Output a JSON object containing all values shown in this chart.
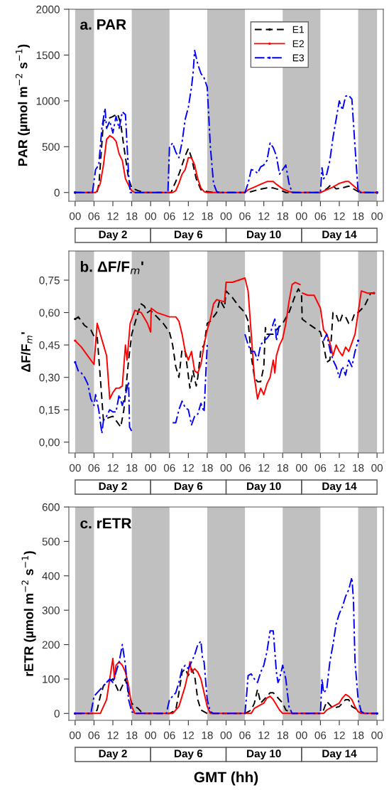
{
  "chart_data": [
    {
      "type": "line",
      "title": "a. PAR",
      "ylabel": "PAR (µmol m$^{−2}$ s$^{−1}$)",
      "legend": "top",
      "xlim": [
        -2,
        98
      ],
      "ylim": [
        -95,
        2000
      ],
      "yticks": [
        0,
        500,
        1000,
        1500,
        2000
      ],
      "xticks": [
        {
          "value": 0,
          "label": "00"
        },
        {
          "value": 6,
          "label": "06"
        },
        {
          "value": 12,
          "label": "12"
        },
        {
          "value": 18,
          "label": "18"
        },
        {
          "value": 24,
          "label": "00"
        },
        {
          "value": 30,
          "label": "06"
        },
        {
          "value": 36,
          "label": "12"
        },
        {
          "value": 42,
          "label": "18"
        },
        {
          "value": 48,
          "label": "00"
        },
        {
          "value": 54,
          "label": "06"
        },
        {
          "value": 60,
          "label": "12"
        },
        {
          "value": 66,
          "label": "18"
        },
        {
          "value": 72,
          "label": "00"
        },
        {
          "value": 78,
          "label": "06"
        },
        {
          "value": 84,
          "label": "12"
        },
        {
          "value": 90,
          "label": "18"
        },
        {
          "value": 96,
          "label": "00"
        }
      ],
      "bands": [
        {
          "axis": "x",
          "from": 0,
          "to": 6,
          "color": "#c0c0c0"
        },
        {
          "axis": "x",
          "from": 18,
          "to": 30,
          "color": "#c0c0c0"
        },
        {
          "axis": "x",
          "from": 42,
          "to": 54,
          "color": "#c0c0c0"
        },
        {
          "axis": "x",
          "from": 66,
          "to": 78,
          "color": "#c0c0c0"
        },
        {
          "axis": "x",
          "from": 90,
          "to": 96,
          "color": "#c0c0c0"
        }
      ],
      "annotations": [
        "Day 2",
        "Day 6",
        "Day 10",
        "Day 14"
      ],
      "series": [
        {
          "name": "E1",
          "color": "#000000",
          "line_style": "dashed",
          "x": [
            0,
            6,
            7,
            7.6,
            9,
            10,
            12,
            13.5,
            14.5,
            15.5,
            17,
            18,
            20,
            22,
            30.5,
            31,
            33,
            35,
            36,
            37,
            38.5,
            40,
            42,
            44,
            54,
            56,
            58,
            61,
            63,
            65,
            67,
            78,
            80,
            81.5,
            83,
            85,
            87,
            88,
            90,
            92,
            96
          ],
          "values": [
            0,
            0,
            10,
            100,
            780,
            800,
            830,
            860,
            750,
            500,
            150,
            50,
            20,
            0,
            0,
            40,
            200,
            400,
            480,
            380,
            150,
            30,
            10,
            0,
            0,
            10,
            30,
            50,
            50,
            30,
            0,
            0,
            40,
            90,
            40,
            50,
            70,
            50,
            10,
            0,
            0
          ]
        },
        {
          "name": "E2",
          "color": "#ff0000",
          "line_style": "solid",
          "x": [
            0,
            6.5,
            7,
            8,
            9,
            10,
            11,
            12,
            13,
            14,
            15,
            16,
            17,
            18,
            19,
            31,
            32,
            33,
            34,
            35,
            36,
            37,
            38,
            39,
            40,
            41,
            42,
            54,
            55,
            57,
            59,
            61,
            63,
            64,
            66,
            68,
            70,
            78,
            80,
            82,
            84,
            86,
            87,
            88,
            90,
            91,
            96
          ],
          "values": [
            0,
            0,
            20,
            100,
            300,
            580,
            620,
            600,
            560,
            420,
            350,
            150,
            80,
            20,
            0,
            0,
            20,
            100,
            200,
            250,
            380,
            380,
            300,
            150,
            50,
            10,
            0,
            0,
            30,
            60,
            90,
            120,
            120,
            90,
            40,
            10,
            0,
            0,
            30,
            60,
            100,
            120,
            120,
            90,
            30,
            0,
            0
          ]
        },
        {
          "name": "E3",
          "color": "#0000ff",
          "line_style": "dashdot",
          "x": [
            0,
            5.5,
            6.5,
            7.5,
            8.5,
            9.5,
            10,
            11,
            12,
            13,
            14,
            15,
            16,
            17,
            17.5,
            29.5,
            30,
            31,
            32,
            33,
            34,
            35,
            36,
            37,
            37.5,
            38,
            39,
            40,
            41,
            42,
            43,
            44,
            45,
            46,
            54,
            55,
            56,
            57,
            58,
            59,
            60,
            61,
            62,
            63,
            64,
            65,
            66,
            67,
            68,
            69,
            78,
            78.5,
            79,
            80,
            81,
            82,
            83,
            84,
            85,
            86,
            87,
            88,
            89,
            90,
            96
          ],
          "values": [
            0,
            0,
            250,
            300,
            700,
            920,
            700,
            780,
            650,
            830,
            700,
            880,
            850,
            200,
            0,
            0,
            500,
            540,
            440,
            380,
            550,
            800,
            930,
            1150,
            1300,
            1550,
            1400,
            1300,
            1250,
            1150,
            500,
            100,
            10,
            0,
            0,
            100,
            250,
            240,
            210,
            280,
            300,
            350,
            540,
            490,
            400,
            200,
            250,
            300,
            100,
            0,
            0,
            270,
            150,
            200,
            350,
            600,
            800,
            1000,
            900,
            1050,
            1060,
            1020,
            500,
            0,
            0
          ]
        }
      ]
    },
    {
      "type": "line",
      "title": "b. ΔF/F$_{m}$'",
      "ylabel": "ΔF/F$_{m}$'",
      "xlim": [
        -2,
        98
      ],
      "ylim": [
        -0.05,
        0.885
      ],
      "yticks": [
        {
          "value": 0,
          "label": "0,00"
        },
        {
          "value": 0.15,
          "label": "0,15"
        },
        {
          "value": 0.3,
          "label": "0,30"
        },
        {
          "value": 0.45,
          "label": "0,45"
        },
        {
          "value": 0.6,
          "label": "0,60"
        },
        {
          "value": 0.75,
          "label": "0,75"
        }
      ],
      "xticks": [
        {
          "value": 0,
          "label": "00"
        },
        {
          "value": 6,
          "label": "06"
        },
        {
          "value": 12,
          "label": "12"
        },
        {
          "value": 18,
          "label": "18"
        },
        {
          "value": 24,
          "label": "00"
        },
        {
          "value": 30,
          "label": "06"
        },
        {
          "value": 36,
          "label": "12"
        },
        {
          "value": 42,
          "label": "18"
        },
        {
          "value": 48,
          "label": "00"
        },
        {
          "value": 54,
          "label": "06"
        },
        {
          "value": 60,
          "label": "12"
        },
        {
          "value": 66,
          "label": "18"
        },
        {
          "value": 72,
          "label": "00"
        },
        {
          "value": 78,
          "label": "06"
        },
        {
          "value": 84,
          "label": "12"
        },
        {
          "value": 90,
          "label": "18"
        },
        {
          "value": 96,
          "label": "00"
        }
      ],
      "bands": [
        {
          "axis": "x",
          "from": 0,
          "to": 6,
          "color": "#c0c0c0"
        },
        {
          "axis": "x",
          "from": 18,
          "to": 30,
          "color": "#c0c0c0"
        },
        {
          "axis": "x",
          "from": 42,
          "to": 54,
          "color": "#c0c0c0"
        },
        {
          "axis": "x",
          "from": 66,
          "to": 78,
          "color": "#c0c0c0"
        },
        {
          "axis": "x",
          "from": 90,
          "to": 96,
          "color": "#c0c0c0"
        }
      ],
      "annotations": [
        "Day 2",
        "Day 6",
        "Day 10",
        "Day 14"
      ],
      "series": [
        {
          "color": "#000000",
          "line_style": "dashed",
          "x": [
            0,
            1,
            3,
            5,
            6,
            7,
            8,
            9,
            10,
            12,
            13,
            14.5,
            15.5,
            17,
            18,
            20,
            21,
            22,
            23,
            24,
            26,
            28,
            30,
            31,
            32,
            33,
            34,
            35,
            36.5,
            37.5,
            38.5,
            39,
            40,
            41,
            42,
            43,
            45,
            46,
            47.5,
            48,
            50,
            52,
            54,
            55,
            56,
            57,
            58,
            59,
            60,
            60.5,
            61,
            63,
            64,
            66,
            68,
            70,
            71,
            72,
            72.2,
            74,
            76,
            78,
            79,
            80,
            81,
            82,
            83,
            84,
            85,
            86,
            87,
            88,
            89,
            90,
            92,
            94,
            95
          ],
          "values": [
            0.57,
            0.58,
            0.54,
            0.52,
            0.49,
            0.49,
            0.3,
            0.1,
            0.11,
            0.12,
            0.1,
            0.07,
            0.15,
            0.38,
            0.5,
            0.6,
            0.64,
            0.63,
            0.6,
            0.61,
            0.58,
            0.55,
            0.51,
            0.45,
            0.35,
            0.3,
            0.43,
            0.42,
            0.25,
            0.33,
            0.26,
            0.3,
            0.43,
            0.45,
            0.55,
            0.56,
            0.6,
            0.66,
            0.62,
            0.7,
            0.67,
            0.63,
            0.6,
            0.56,
            0.4,
            0.3,
            0.28,
            0.28,
            0.35,
            0.53,
            0.5,
            0.5,
            0.52,
            0.55,
            0.6,
            0.68,
            0.71,
            0.68,
            0.57,
            0.55,
            0.53,
            0.51,
            0.45,
            0.37,
            0.38,
            0.6,
            0.59,
            0.55,
            0.59,
            0.58,
            0.55,
            0.56,
            0.6,
            0.6,
            0.63,
            0.69,
            0.69
          ]
        },
        {
          "color": "#ff0000",
          "line_style": "solid",
          "x": [
            0,
            2,
            4,
            6,
            7,
            8,
            9,
            10,
            11,
            12,
            13,
            14,
            15,
            16,
            16.5,
            17.5,
            19,
            21,
            23,
            24,
            24.2,
            26,
            28,
            30,
            32,
            33,
            34,
            35,
            36,
            37,
            38,
            39,
            40,
            41,
            42,
            43,
            44,
            45,
            47.5,
            48,
            50,
            52,
            54,
            55,
            56,
            57,
            58,
            59,
            60,
            61,
            62,
            63,
            63.5,
            64,
            65,
            66,
            67,
            68,
            69,
            70,
            71.5,
            72,
            72.3,
            74,
            76,
            78,
            79,
            80,
            81,
            82,
            83,
            84,
            85,
            86,
            87,
            88,
            89,
            90,
            91,
            93,
            95
          ],
          "values": [
            0.47,
            0.44,
            0.4,
            0.36,
            0.55,
            0.5,
            0.45,
            0.4,
            0.2,
            0.23,
            0.25,
            0.25,
            0.26,
            0.45,
            0.38,
            0.55,
            0.61,
            0.6,
            0.55,
            0.51,
            0.62,
            0.6,
            0.59,
            0.58,
            0.58,
            0.56,
            0.5,
            0.42,
            0.38,
            0.42,
            0.33,
            0.32,
            0.36,
            0.45,
            0.52,
            0.57,
            0.64,
            0.66,
            0.65,
            0.74,
            0.74,
            0.75,
            0.76,
            0.7,
            0.5,
            0.3,
            0.2,
            0.25,
            0.22,
            0.27,
            0.3,
            0.38,
            0.32,
            0.4,
            0.45,
            0.48,
            0.55,
            0.65,
            0.73,
            0.74,
            0.73,
            null,
            0.69,
            0.68,
            0.68,
            0.62,
            0.52,
            0.5,
            0.46,
            0.4,
            0.45,
            0.42,
            0.4,
            0.44,
            0.42,
            0.46,
            0.5,
            0.6,
            0.7,
            0.69,
            0.69
          ]
        },
        {
          "color": "#0000ff",
          "line_style": "dashdot",
          "x": [
            0,
            1,
            2,
            3,
            4,
            5,
            6,
            6.5,
            7.5,
            8.5,
            9,
            10,
            11,
            12,
            13,
            14,
            15,
            16,
            17,
            17.3,
            18,
            24,
            31,
            32,
            33,
            34,
            35,
            36,
            37,
            38,
            39,
            40,
            41,
            41.5,
            42,
            48,
            54,
            55,
            56,
            57,
            58,
            59,
            60,
            61,
            62,
            63,
            63.5,
            64,
            65,
            72,
            79,
            80,
            81,
            82,
            83,
            84,
            85,
            86,
            87,
            88,
            89,
            90
          ],
          "values": [
            0.37,
            0.33,
            0.32,
            0.3,
            0.27,
            0.2,
            0.17,
            0.22,
            0.15,
            0.04,
            0.1,
            0.12,
            0.15,
            0.14,
            0.14,
            0.22,
            0.17,
            0.22,
            0.28,
            0.07,
            0.05,
            null,
            0.09,
            0.09,
            0.15,
            0.19,
            0.16,
            0.15,
            0.08,
            0.12,
            0.13,
            0.18,
            0.14,
            0.3,
            0.45,
            null,
            0.5,
            0.45,
            0.42,
            0.42,
            0.38,
            0.45,
            0.47,
            0.48,
            0.5,
            0.55,
            0.57,
            0.47,
            0.55,
            null,
            0.47,
            0.5,
            0.43,
            0.38,
            0.35,
            0.3,
            0.35,
            0.31,
            0.38,
            0.35,
            0.42,
            0.47
          ]
        }
      ]
    },
    {
      "type": "line",
      "title": "c. rETR",
      "ylabel": "rETR (µmol m$^{−2}$ s$^{−1}$)",
      "xlabel": "GMT (hh)",
      "xlim": [
        -2,
        98
      ],
      "ylim": [
        -20,
        600
      ],
      "yticks": [
        0,
        100,
        200,
        300,
        400,
        500,
        600
      ],
      "xticks": [
        {
          "value": 0,
          "label": "00"
        },
        {
          "value": 6,
          "label": "06"
        },
        {
          "value": 12,
          "label": "12"
        },
        {
          "value": 18,
          "label": "18"
        },
        {
          "value": 24,
          "label": "00"
        },
        {
          "value": 30,
          "label": "06"
        },
        {
          "value": 36,
          "label": "12"
        },
        {
          "value": 42,
          "label": "18"
        },
        {
          "value": 48,
          "label": "00"
        },
        {
          "value": 54,
          "label": "06"
        },
        {
          "value": 60,
          "label": "12"
        },
        {
          "value": 66,
          "label": "18"
        },
        {
          "value": 72,
          "label": "00"
        },
        {
          "value": 78,
          "label": "06"
        },
        {
          "value": 84,
          "label": "12"
        },
        {
          "value": 90,
          "label": "18"
        },
        {
          "value": 96,
          "label": "00"
        }
      ],
      "bands": [
        {
          "axis": "x",
          "from": 0,
          "to": 6,
          "color": "#c0c0c0"
        },
        {
          "axis": "x",
          "from": 18,
          "to": 30,
          "color": "#c0c0c0"
        },
        {
          "axis": "x",
          "from": 42,
          "to": 54,
          "color": "#c0c0c0"
        },
        {
          "axis": "x",
          "from": 66,
          "to": 78,
          "color": "#c0c0c0"
        },
        {
          "axis": "x",
          "from": 90,
          "to": 96,
          "color": "#c0c0c0"
        }
      ],
      "annotations": [
        "Day 2",
        "Day 6",
        "Day 10",
        "Day 14"
      ],
      "series": [
        {
          "color": "#000000",
          "line_style": "dashed",
          "x": [
            0,
            6,
            7,
            8,
            9,
            10,
            11,
            12,
            13,
            14,
            15,
            16,
            17,
            18,
            19,
            20,
            21,
            22,
            30,
            32,
            33,
            34,
            35,
            36,
            37,
            38,
            39,
            40,
            42,
            54,
            56,
            57,
            58,
            59,
            61,
            62,
            63,
            64,
            66,
            67,
            69,
            78,
            79,
            80,
            81,
            82,
            84,
            85,
            86,
            87,
            88,
            90,
            92,
            96
          ],
          "values": [
            0,
            0,
            10,
            50,
            80,
            90,
            95,
            100,
            80,
            60,
            80,
            100,
            60,
            30,
            20,
            15,
            5,
            0,
            0,
            10,
            60,
            120,
            130,
            110,
            130,
            110,
            40,
            10,
            0,
            0,
            10,
            30,
            70,
            30,
            50,
            60,
            60,
            50,
            30,
            10,
            0,
            0,
            10,
            35,
            25,
            15,
            20,
            30,
            40,
            40,
            20,
            10,
            0,
            0
          ]
        },
        {
          "color": "#ff0000",
          "line_style": "solid",
          "x": [
            0,
            8,
            9,
            10,
            11,
            12,
            12.5,
            13,
            14,
            15,
            16,
            17,
            18,
            19,
            31,
            33,
            35,
            36,
            36.5,
            37,
            38,
            39,
            40,
            41,
            42,
            43,
            56,
            57,
            58,
            59,
            60,
            61,
            62,
            63,
            64,
            65,
            66,
            79,
            80,
            82,
            83,
            84,
            85,
            86,
            87,
            88,
            89,
            90,
            91,
            95
          ],
          "values": [
            0,
            0,
            20,
            40,
            100,
            160,
            100,
            140,
            150,
            140,
            120,
            80,
            20,
            0,
            0,
            20,
            80,
            120,
            150,
            120,
            130,
            120,
            100,
            60,
            20,
            0,
            0,
            15,
            20,
            25,
            30,
            45,
            50,
            40,
            25,
            10,
            0,
            0,
            10,
            20,
            25,
            30,
            45,
            55,
            50,
            40,
            20,
            5,
            0,
            0
          ]
        },
        {
          "color": "#0000ff",
          "line_style": "dashdot",
          "x": [
            0,
            5,
            6,
            7,
            8,
            9,
            10,
            11,
            12,
            13,
            14,
            15,
            16,
            17,
            18,
            19,
            29,
            30,
            31,
            32,
            33,
            34,
            35,
            36,
            37,
            38,
            39,
            40,
            40.5,
            41,
            42,
            43,
            44,
            54,
            54.5,
            55,
            56,
            57,
            58,
            59,
            60,
            61,
            62,
            63,
            64,
            64.5,
            65,
            66,
            67,
            68,
            69,
            78,
            78.5,
            79,
            80,
            81,
            82,
            83,
            84,
            85,
            86,
            87,
            88,
            88.5,
            89,
            90,
            91,
            92,
            96
          ],
          "values": [
            0,
            0,
            50,
            60,
            70,
            80,
            90,
            100,
            90,
            120,
            150,
            200,
            140,
            40,
            5,
            0,
            0,
            40,
            50,
            60,
            90,
            130,
            140,
            130,
            150,
            170,
            200,
            210,
            160,
            150,
            40,
            5,
            0,
            0,
            50,
            110,
            115,
            100,
            90,
            120,
            140,
            180,
            240,
            240,
            120,
            90,
            100,
            140,
            100,
            20,
            0,
            0,
            100,
            60,
            70,
            150,
            200,
            260,
            290,
            310,
            340,
            360,
            395,
            330,
            150,
            40,
            5,
            0,
            0
          ]
        }
      ]
    }
  ]
}
